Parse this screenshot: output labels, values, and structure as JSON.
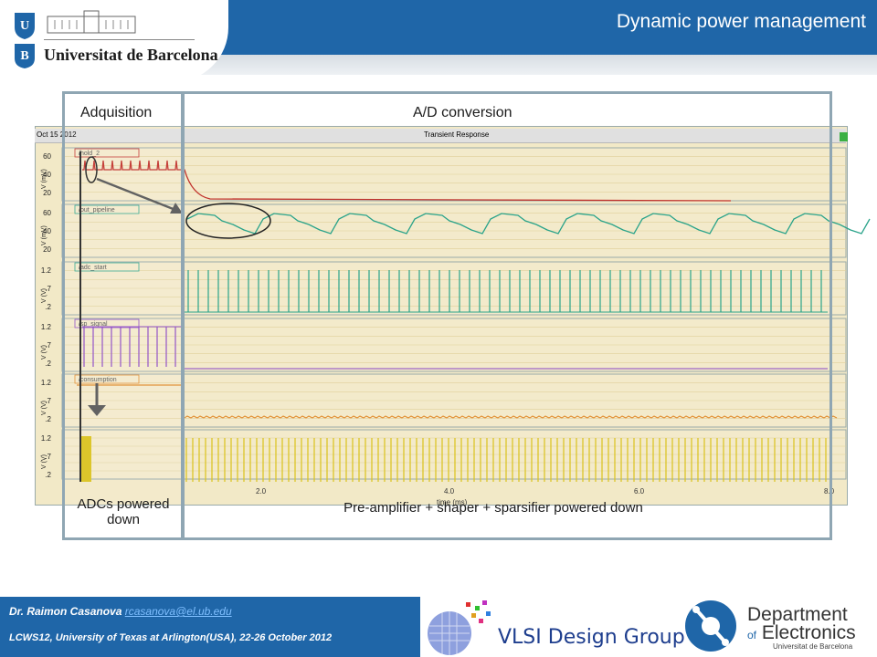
{
  "header": {
    "logo_name": "Universitat de Barcelona",
    "slide_title": "Dynamic power management"
  },
  "regions": {
    "acquisition_label": "Adquisition",
    "conversion_label": "A/D conversion"
  },
  "simulation": {
    "date": "Oct 15 2012",
    "title": "Transient Response",
    "signals": [
      "/hold_2",
      "/out_pipeline",
      "/adc_start",
      "/sp_signal",
      "/consumption",
      ""
    ],
    "y_labels": [
      "V (mV)",
      "V (mV)",
      "V (V)",
      "V (V)",
      "V (V)",
      "V (V)"
    ],
    "x_ticks": [
      "2.0",
      "4.0",
      "6.0",
      "8.0"
    ],
    "x_label": "time (ms)"
  },
  "captions": {
    "adcs": "ADCs powered down",
    "preamp": "Pre-amplifier + shaper + sparsifier powered down"
  },
  "footer": {
    "author": "Dr. Raimon Casanova",
    "email": "rcasanova@el.ub.edu",
    "conference": "LCWS12, University of Texas at Arlington(USA), 22-26 October 2012",
    "group": "VLSI Design Group",
    "dept_line1": "Department",
    "dept_of": "of",
    "dept_line2": "Electronics",
    "dept_uni": "Universitat de Barcelona"
  },
  "colors": {
    "header_blue": "#1f66a8",
    "plot_background": "#f2e9c7",
    "trace_red": "#c0302a",
    "trace_green": "#2aa38a",
    "trace_purple": "#8a46c4",
    "trace_orange": "#e08a2a",
    "trace_yellow": "#d9c21a"
  }
}
